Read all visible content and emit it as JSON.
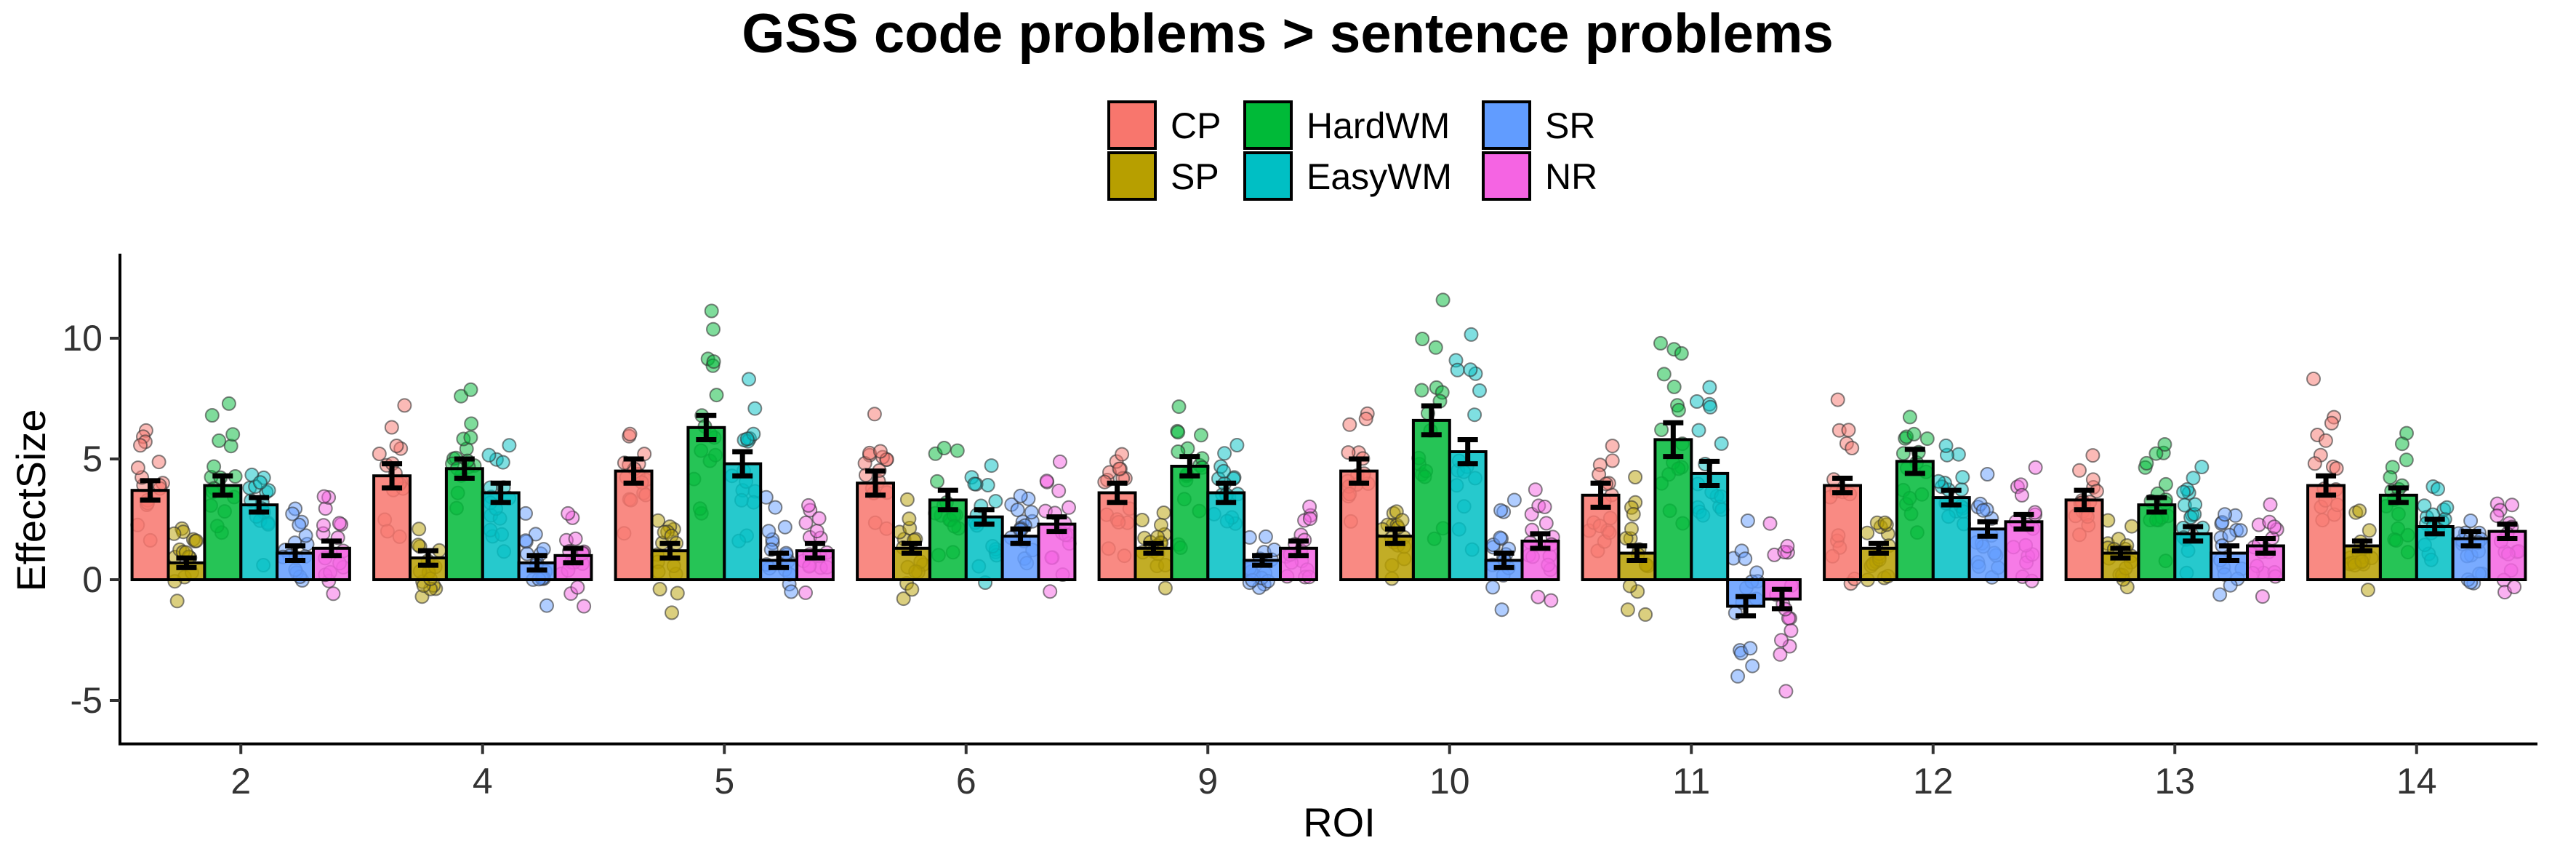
{
  "chart_data": {
    "type": "bar",
    "title": "GSS code problems > sentence problems",
    "xlabel": "ROI",
    "ylabel": "EffectSize",
    "ylim": [
      -6.8,
      13.5
    ],
    "yticks": [
      -5,
      0,
      5,
      10
    ],
    "grid": false,
    "legend_position": "top",
    "categories": [
      "2",
      "4",
      "5",
      "6",
      "9",
      "10",
      "11",
      "12",
      "13",
      "14"
    ],
    "series": [
      {
        "name": "CP",
        "color": "#F8766D",
        "values": [
          3.7,
          4.3,
          4.5,
          4.0,
          3.6,
          4.5,
          3.5,
          3.9,
          3.3,
          3.9
        ],
        "errors": [
          0.4,
          0.5,
          0.5,
          0.5,
          0.4,
          0.5,
          0.5,
          0.3,
          0.4,
          0.4
        ]
      },
      {
        "name": "SP",
        "color": "#B79F00",
        "values": [
          0.7,
          0.9,
          1.2,
          1.3,
          1.3,
          1.8,
          1.1,
          1.3,
          1.1,
          1.4
        ],
        "errors": [
          0.2,
          0.3,
          0.3,
          0.2,
          0.2,
          0.3,
          0.3,
          0.2,
          0.2,
          0.2
        ]
      },
      {
        "name": "HardWM",
        "color": "#00BA38",
        "values": [
          3.9,
          4.6,
          6.3,
          3.3,
          4.7,
          6.6,
          5.8,
          4.9,
          3.1,
          3.5
        ],
        "errors": [
          0.4,
          0.4,
          0.5,
          0.4,
          0.4,
          0.6,
          0.7,
          0.5,
          0.3,
          0.3
        ]
      },
      {
        "name": "EasyWM",
        "color": "#00BFC4",
        "values": [
          3.1,
          3.6,
          4.8,
          2.6,
          3.6,
          5.3,
          4.4,
          3.4,
          1.9,
          2.2
        ],
        "errors": [
          0.3,
          0.4,
          0.5,
          0.3,
          0.4,
          0.5,
          0.5,
          0.3,
          0.3,
          0.3
        ]
      },
      {
        "name": "SR",
        "color": "#619CFF",
        "values": [
          1.1,
          0.7,
          0.8,
          1.8,
          0.8,
          0.8,
          -1.1,
          2.1,
          1.1,
          1.7
        ],
        "errors": [
          0.3,
          0.3,
          0.3,
          0.3,
          0.2,
          0.3,
          0.4,
          0.3,
          0.3,
          0.3
        ]
      },
      {
        "name": "NR",
        "color": "#F564E3",
        "values": [
          1.3,
          1.0,
          1.2,
          2.3,
          1.3,
          1.6,
          -0.8,
          2.4,
          1.4,
          2.0
        ],
        "errors": [
          0.3,
          0.3,
          0.3,
          0.3,
          0.3,
          0.3,
          0.4,
          0.3,
          0.3,
          0.3
        ]
      }
    ],
    "point_spread": [
      [
        2.0,
        2.2,
        1.4,
        1.8,
        1.6,
        1.5,
        1.6,
        2.5,
        1.5,
        2.0
      ],
      [
        0.9,
        1.3,
        1.2,
        1.1,
        0.9,
        1.3,
        1.5,
        1.0,
        1.0,
        0.9
      ],
      [
        1.8,
        2.2,
        3.0,
        1.8,
        2.0,
        3.0,
        3.2,
        2.0,
        1.7,
        1.6
      ],
      [
        1.5,
        2.0,
        2.2,
        1.4,
        1.5,
        2.8,
        3.0,
        1.4,
        1.6,
        1.2
      ],
      [
        1.0,
        1.2,
        1.3,
        1.3,
        0.9,
        1.5,
        2.3,
        1.5,
        1.1,
        1.4
      ],
      [
        1.3,
        1.4,
        1.3,
        1.6,
        1.2,
        1.7,
        2.6,
        1.7,
        1.5,
        1.5
      ]
    ]
  }
}
